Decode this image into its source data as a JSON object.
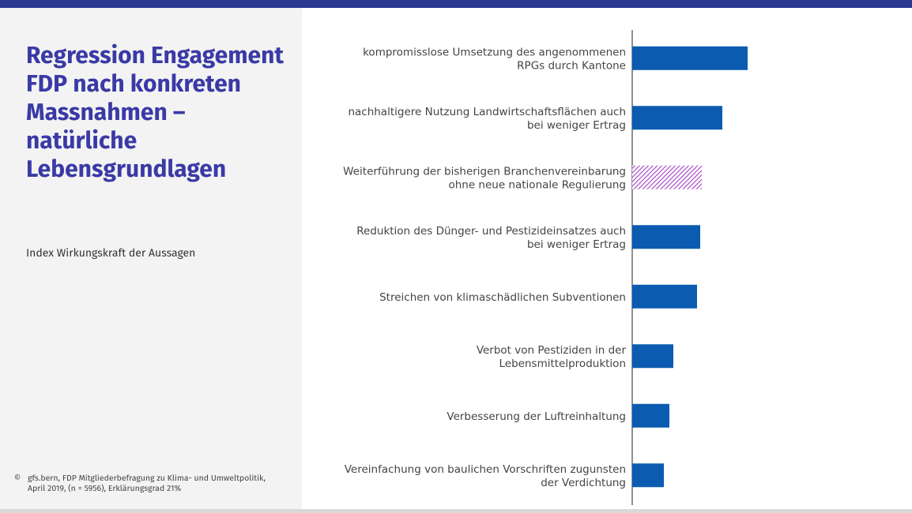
{
  "chart_data": {
    "type": "hbar",
    "title": "Regression Engagement FDP nach konkreten Massnahmen – natürliche Lebensgrundlagen",
    "subtitle": "Index Wirkungskraft der Aussagen",
    "source_symbol": "©",
    "source": "gfs.bern, FDP Mitgliederbefragung zu Klima- und Umweltpolitik, April 2019, (n = 5956), Erklärungsgrad 21%",
    "categories": [
      [
        "kompromisslose Umsetzung des angenommenen",
        "RPGs durch Kantone"
      ],
      [
        "nachhaltigere Nutzung Landwirtschaftsflächen auch",
        "bei weniger Ertrag"
      ],
      [
        "Weiterführung der bisherigen Branchenvereinbarung",
        "ohne neue nationale Regulierung"
      ],
      [
        "Reduktion des Dünger- und Pestizideinsatzes auch",
        "bei weniger Ertrag"
      ],
      [
        "Streichen von klimaschädlichen Subventionen"
      ],
      [
        "Verbot von Pestiziden in der",
        "Lebensmittelproduktion"
      ],
      [
        "Verbesserung der Luftreinhaltung"
      ],
      [
        "Vereinfachung von baulichen Vorschriften zugunsten",
        "der Verdichtung"
      ]
    ],
    "values": [
      0.146,
      0.114,
      0.088,
      0.086,
      0.082,
      0.052,
      0.047,
      0.04
    ],
    "color": "#0b5cb0",
    "hatched": [
      false,
      false,
      true,
      false,
      false,
      false,
      false,
      false
    ],
    "hatch_color": "#a43fc4"
  }
}
